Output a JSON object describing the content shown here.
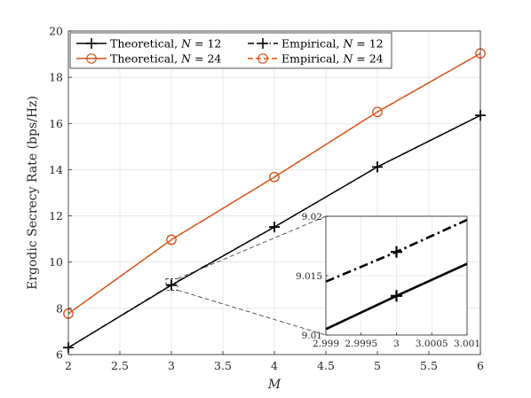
{
  "chart_data": [
    {
      "type": "line",
      "xlabel": "M",
      "ylabel": "Ergodic Secrecy Rate (bps/Hz)",
      "x": [
        2,
        3,
        4,
        5,
        6
      ],
      "xlim": [
        2,
        6
      ],
      "ylim": [
        6,
        20
      ],
      "xticks": [
        "2",
        "2.5",
        "3",
        "3.5",
        "4",
        "4.5",
        "5",
        "5.5",
        "6"
      ],
      "yticks": [
        "6",
        "8",
        "10",
        "12",
        "14",
        "16",
        "18",
        "20"
      ],
      "grid": true,
      "legend_position": "top-left",
      "series": [
        {
          "name": "Theoretical, N = 12",
          "name_prefix": "Theoretical, ",
          "name_var": "N",
          "name_suffix": " = 12",
          "color": "#000000",
          "linestyle": "solid",
          "marker": "plus",
          "values": [
            6.3,
            9.0,
            11.52,
            14.12,
            16.35
          ]
        },
        {
          "name": "Empirical, N = 12",
          "name_prefix": "Empirical, ",
          "name_var": "N",
          "name_suffix": " = 12",
          "color": "#000000",
          "linestyle": "dashdot",
          "marker": "plus",
          "values": [
            6.3,
            9.017,
            11.52,
            14.12,
            16.35
          ]
        },
        {
          "name": "Theoretical, N = 24",
          "name_prefix": "Theoretical, ",
          "name_var": "N",
          "name_suffix": " = 24",
          "color": "#D95319",
          "linestyle": "solid",
          "marker": "circle",
          "values": [
            7.77,
            10.97,
            13.68,
            16.5,
            19.03
          ]
        },
        {
          "name": "Empirical, N = 24",
          "name_prefix": "Empirical, ",
          "name_var": "N",
          "name_suffix": " = 24",
          "color": "#D95319",
          "linestyle": "dashed",
          "marker": "circle",
          "values": [
            7.77,
            10.97,
            13.68,
            16.5,
            19.03
          ]
        }
      ]
    },
    {
      "type": "line",
      "role": "inset-zoom",
      "xlim": [
        2.999,
        3.001
      ],
      "ylim": [
        9.01,
        9.02
      ],
      "xticks": [
        "2.999",
        "2.9995",
        "3",
        "3.0005",
        "3.001"
      ],
      "yticks": [
        "9.01",
        "9.015",
        "9.02"
      ],
      "grid": true,
      "series": [
        {
          "ref": "Theoretical, N = 12",
          "x": [
            2.999,
            3.0,
            3.001
          ],
          "values": [
            9.0105,
            9.0133,
            9.016
          ],
          "linestyle": "solid",
          "marker_at": 3.0
        },
        {
          "ref": "Empirical, N = 12",
          "x": [
            2.999,
            3.0,
            3.001
          ],
          "values": [
            9.0145,
            9.017,
            9.0197
          ],
          "linestyle": "dashdot",
          "marker_at": 3.0
        }
      ]
    }
  ]
}
